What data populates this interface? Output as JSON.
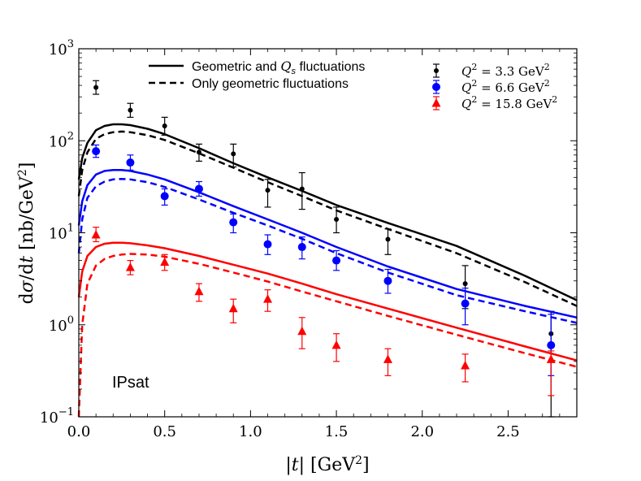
{
  "chart_data": {
    "type": "line",
    "x_scale": "linear",
    "y_scale": "log",
    "xlim": [
      0.0,
      2.9
    ],
    "ylim": [
      0.1,
      1000
    ],
    "xlabel": "|t| [GeV²]",
    "ylabel": "dσ/dt [nb/GeV²]",
    "x_ticks": [
      0.0,
      0.5,
      1.0,
      1.5,
      2.0,
      2.5
    ],
    "x_tick_labels": [
      "0.0",
      "0.5",
      "1.0",
      "1.5",
      "2.0",
      "2.5"
    ],
    "y_ticks": [
      0.1,
      1,
      10,
      100,
      1000
    ],
    "y_tick_labels": [
      {
        "base": "10",
        "exp": "−1"
      },
      {
        "base": "10",
        "exp": "0"
      },
      {
        "base": "10",
        "exp": "1"
      },
      {
        "base": "10",
        "exp": "2"
      },
      {
        "base": "10",
        "exp": "3"
      }
    ],
    "annotation": "IPsat",
    "line_legend": [
      {
        "label": "Geometric and Q_s fluctuations",
        "pre": "Geometric and ",
        "math": "Q",
        "sub": "s",
        "post": " fluctuations",
        "style": "solid"
      },
      {
        "label": "Only geometric fluctuations",
        "pre": "Only geometric fluctuations",
        "math": "",
        "sub": "",
        "post": "",
        "style": "dashed"
      }
    ],
    "series": [
      {
        "name": "Q² = 3.3 GeV²",
        "q2": "3.3",
        "color": "#000000",
        "marker": "point",
        "theory_solid": {
          "x": [
            0.0,
            0.02,
            0.05,
            0.1,
            0.15,
            0.2,
            0.25,
            0.3,
            0.4,
            0.5,
            0.7,
            0.9,
            1.1,
            1.3,
            1.5,
            1.8,
            2.2,
            2.6,
            2.9
          ],
          "y": [
            38,
            65,
            95,
            130,
            145,
            151,
            151,
            148,
            135,
            118,
            83,
            57,
            40,
            28.5,
            20,
            12.8,
            7.2,
            3.4,
            1.85
          ]
        },
        "theory_dashed": {
          "x": [
            0.0,
            0.02,
            0.05,
            0.1,
            0.15,
            0.2,
            0.25,
            0.3,
            0.4,
            0.5,
            0.7,
            0.9,
            1.1,
            1.3,
            1.5,
            1.8,
            2.2,
            2.6,
            2.9
          ],
          "y": [
            25,
            48,
            75,
            105,
            118,
            124,
            126,
            124,
            115,
            102,
            73,
            51,
            35.5,
            25,
            17.5,
            11,
            6,
            2.9,
            1.6
          ]
        },
        "measurements": {
          "x": [
            0.1,
            0.3,
            0.5,
            0.7,
            0.9,
            1.1,
            1.3,
            1.5,
            1.8,
            2.25,
            2.75
          ],
          "y": [
            380,
            215,
            145,
            75,
            72,
            29,
            30,
            14,
            8.5,
            2.8,
            0.8
          ],
          "y_low": [
            320,
            180,
            115,
            60,
            52,
            19,
            18,
            10,
            5.8,
            1.5,
            0.1
          ],
          "y_high": [
            450,
            255,
            180,
            92,
            92,
            38,
            45,
            19,
            11,
            4.4,
            1.4
          ]
        }
      },
      {
        "name": "Q² = 6.6 GeV²",
        "q2": "6.6",
        "color": "#0000ff",
        "marker": "circle",
        "theory_solid": {
          "x": [
            0.0,
            0.02,
            0.05,
            0.1,
            0.15,
            0.2,
            0.25,
            0.3,
            0.4,
            0.5,
            0.7,
            0.9,
            1.1,
            1.3,
            1.5,
            1.8,
            2.2,
            2.6,
            2.9
          ],
          "y": [
            12,
            22,
            33,
            43,
            47,
            48,
            48,
            47,
            43,
            38,
            27.5,
            19.5,
            14,
            10,
            7,
            4.3,
            2.45,
            1.6,
            1.2
          ]
        },
        "theory_dashed": {
          "x": [
            0.0,
            0.02,
            0.05,
            0.1,
            0.15,
            0.2,
            0.25,
            0.3,
            0.4,
            0.5,
            0.7,
            0.9,
            1.1,
            1.3,
            1.5,
            1.8,
            2.2,
            2.6,
            2.9
          ],
          "y": [
            6,
            14,
            24,
            32,
            36,
            38,
            38.5,
            38,
            35.5,
            31.5,
            23,
            16.5,
            12,
            8.6,
            6,
            3.7,
            2.1,
            1.4,
            1.05
          ]
        },
        "measurements": {
          "x": [
            0.1,
            0.3,
            0.5,
            0.7,
            0.9,
            1.1,
            1.3,
            1.5,
            1.8,
            2.25,
            2.75
          ],
          "y": [
            77,
            58,
            25,
            30,
            13,
            7.5,
            7,
            5,
            3,
            1.7,
            0.6
          ],
          "y_low": [
            66,
            48,
            20,
            25,
            10,
            5.8,
            5.2,
            3.9,
            2.2,
            1.0,
            0.28
          ],
          "y_high": [
            90,
            70,
            30,
            36,
            16,
            9.5,
            9,
            6.4,
            4,
            2.5,
            1.3
          ]
        }
      },
      {
        "name": "Q² = 15.8 GeV²",
        "q2": "15.8",
        "color": "#ff0000",
        "marker": "triangle",
        "theory_solid": {
          "x": [
            0.0,
            0.02,
            0.05,
            0.1,
            0.15,
            0.2,
            0.25,
            0.3,
            0.4,
            0.5,
            0.7,
            0.9,
            1.1,
            1.3,
            1.5,
            1.8,
            2.2,
            2.6,
            2.9
          ],
          "y": [
            2.0,
            3.8,
            5.6,
            7.0,
            7.6,
            7.8,
            7.8,
            7.7,
            7.3,
            6.8,
            5.6,
            4.5,
            3.6,
            2.8,
            2.15,
            1.5,
            0.93,
            0.58,
            0.41
          ]
        },
        "theory_dashed": {
          "x": [
            0.0,
            0.02,
            0.05,
            0.1,
            0.15,
            0.2,
            0.25,
            0.3,
            0.4,
            0.5,
            0.7,
            0.9,
            1.1,
            1.3,
            1.5,
            1.8,
            2.2,
            2.6,
            2.9
          ],
          "y": [
            0.1,
            1.0,
            2.8,
            4.4,
            5.2,
            5.6,
            5.8,
            5.9,
            5.8,
            5.5,
            4.6,
            3.7,
            2.95,
            2.3,
            1.8,
            1.25,
            0.78,
            0.49,
            0.35
          ]
        },
        "measurements": {
          "x": [
            0.1,
            0.3,
            0.5,
            0.7,
            0.9,
            1.1,
            1.3,
            1.5,
            1.8,
            2.25,
            2.75
          ],
          "y": [
            9.5,
            4.2,
            4.8,
            2.3,
            1.5,
            1.9,
            0.85,
            0.6,
            0.42,
            0.36,
            0.42
          ],
          "y_low": [
            8.0,
            3.5,
            3.9,
            1.8,
            1.05,
            1.4,
            0.55,
            0.4,
            0.28,
            0.24,
            0.17
          ],
          "y_high": [
            11.5,
            5.0,
            5.8,
            2.8,
            1.9,
            2.4,
            1.2,
            0.8,
            0.55,
            0.48,
            0.52
          ]
        }
      }
    ]
  }
}
